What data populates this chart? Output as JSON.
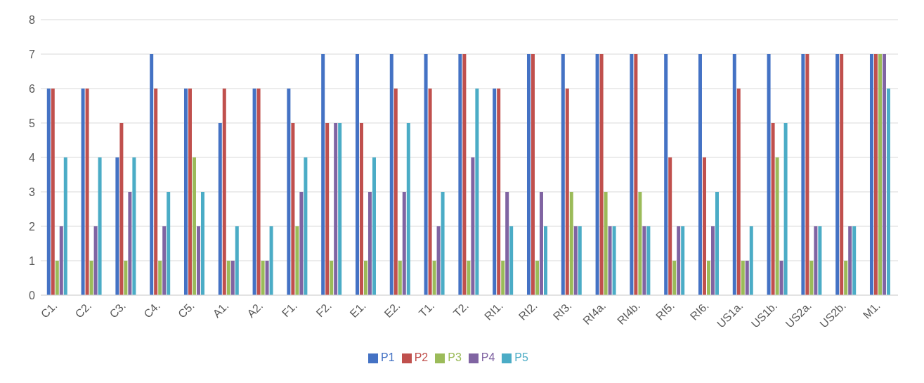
{
  "chart_data": {
    "type": "bar",
    "categories": [
      "C1.",
      "C2.",
      "C3.",
      "C4.",
      "C5.",
      "A1.",
      "A2.",
      "F1.",
      "F2.",
      "E1.",
      "E2.",
      "T1.",
      "T2.",
      "RI1.",
      "RI2.",
      "RI3.",
      "RI4a.",
      "RI4b.",
      "RI5.",
      "RI6.",
      "US1a.",
      "US1b.",
      "US2a.",
      "US2b.",
      "M1."
    ],
    "series": [
      {
        "name": "P1",
        "color": "#4472c4",
        "values": [
          6,
          6,
          4,
          7,
          6,
          5,
          6,
          6,
          7,
          7,
          7,
          7,
          7,
          6,
          7,
          7,
          7,
          7,
          7,
          7,
          7,
          7,
          7,
          7,
          7
        ]
      },
      {
        "name": "P2",
        "color": "#c0504d",
        "values": [
          6,
          6,
          5,
          6,
          6,
          6,
          6,
          5,
          5,
          5,
          6,
          6,
          7,
          6,
          7,
          6,
          7,
          7,
          4,
          4,
          6,
          5,
          7,
          7,
          7
        ]
      },
      {
        "name": "P3",
        "color": "#9bbb59",
        "values": [
          1,
          1,
          1,
          1,
          4,
          1,
          1,
          2,
          1,
          1,
          1,
          1,
          1,
          1,
          1,
          3,
          3,
          3,
          1,
          1,
          1,
          4,
          1,
          1,
          7
        ]
      },
      {
        "name": "P4",
        "color": "#8064a2",
        "values": [
          2,
          2,
          3,
          2,
          2,
          1,
          1,
          3,
          5,
          3,
          3,
          2,
          4,
          3,
          3,
          2,
          2,
          2,
          2,
          2,
          1,
          1,
          2,
          2,
          7
        ]
      },
      {
        "name": "P5",
        "color": "#4bacc6",
        "values": [
          4,
          4,
          4,
          3,
          3,
          2,
          2,
          4,
          5,
          4,
          5,
          3,
          6,
          2,
          2,
          2,
          2,
          2,
          2,
          3,
          2,
          5,
          2,
          2,
          6
        ]
      }
    ],
    "ylim": [
      0,
      8
    ],
    "yticks": [
      0,
      1,
      2,
      3,
      4,
      5,
      6,
      7,
      8
    ],
    "grid": "y",
    "legend": "bottom"
  }
}
